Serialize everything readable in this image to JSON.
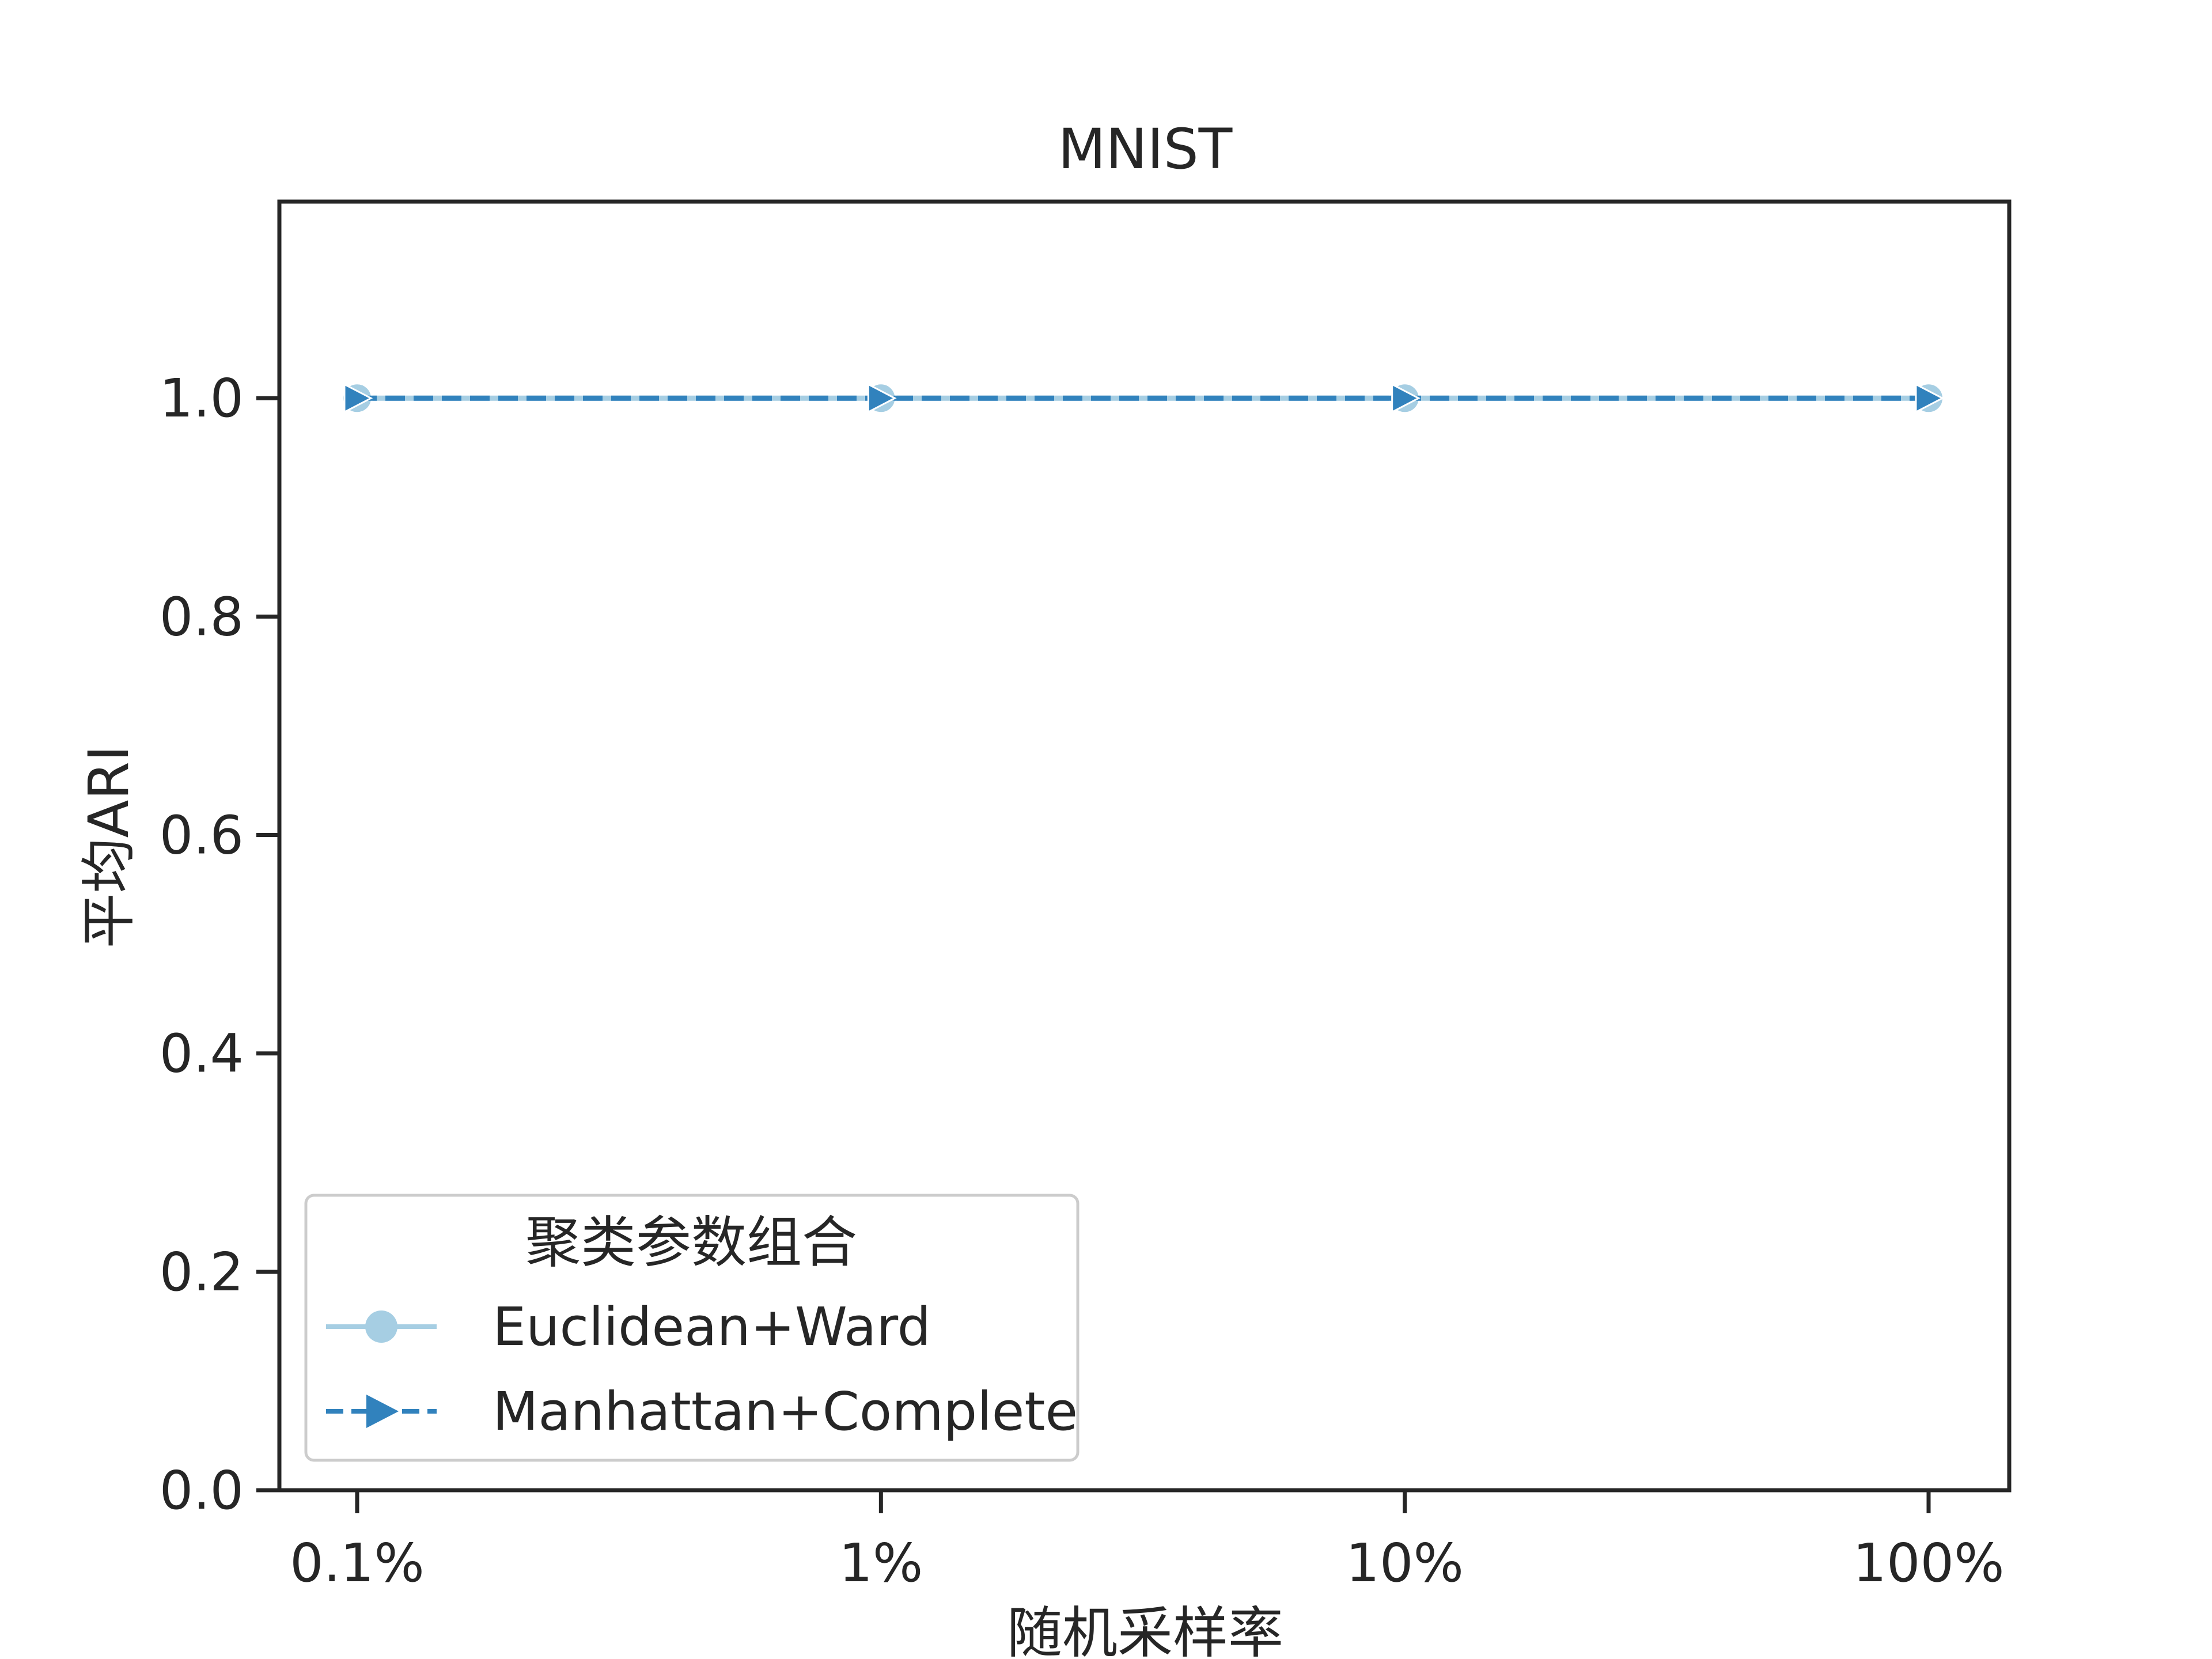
{
  "chart_data": {
    "type": "line",
    "title": "MNIST",
    "xlabel": "随机采样率",
    "ylabel": "平均ARI",
    "categories": [
      "0.1%",
      "1%",
      "10%",
      "100%"
    ],
    "ylim": [
      0,
      1.18
    ],
    "yticks": [
      "0.0",
      "0.2",
      "0.4",
      "0.6",
      "0.8",
      "1.0"
    ],
    "grid": false,
    "legend": {
      "title": "聚类参数组合",
      "placement": "lower-left"
    },
    "series": [
      {
        "name": "Euclidean+Ward",
        "values": [
          1.0,
          1.0,
          1.0,
          1.0
        ],
        "color": "#a6cee3",
        "marker": "circle",
        "linestyle": "solid"
      },
      {
        "name": "Manhattan+Complete",
        "values": [
          1.0,
          1.0,
          1.0,
          1.0
        ],
        "color": "#3182bd",
        "marker": "triangle-right",
        "linestyle": "dashed"
      }
    ]
  }
}
